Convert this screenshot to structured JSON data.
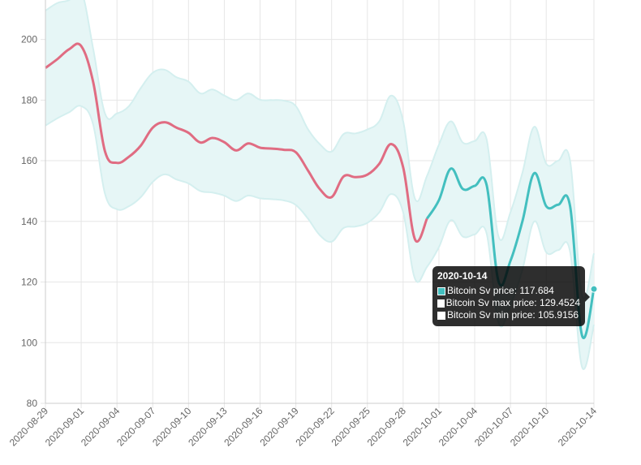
{
  "chart_data": {
    "type": "line",
    "x": [
      "2020-08-29",
      "2020-08-30",
      "2020-08-31",
      "2020-09-01",
      "2020-09-02",
      "2020-09-03",
      "2020-09-04",
      "2020-09-05",
      "2020-09-06",
      "2020-09-07",
      "2020-09-08",
      "2020-09-09",
      "2020-09-10",
      "2020-09-11",
      "2020-09-12",
      "2020-09-13",
      "2020-09-14",
      "2020-09-15",
      "2020-09-16",
      "2020-09-17",
      "2020-09-18",
      "2020-09-19",
      "2020-09-20",
      "2020-09-21",
      "2020-09-22",
      "2020-09-23",
      "2020-09-24",
      "2020-09-25",
      "2020-09-26",
      "2020-09-27",
      "2020-09-28",
      "2020-09-29",
      "2020-09-30",
      "2020-10-01",
      "2020-10-02",
      "2020-10-03",
      "2020-10-04",
      "2020-10-05",
      "2020-10-06",
      "2020-10-07",
      "2020-10-08",
      "2020-10-09",
      "2020-10-10",
      "2020-10-11",
      "2020-10-12",
      "2020-10-13",
      "2020-10-14"
    ],
    "x_tick_labels": [
      "2020-08-29",
      "2020-09-01",
      "2020-09-04",
      "2020-09-07",
      "2020-09-10",
      "2020-09-13",
      "2020-09-16",
      "2020-09-19",
      "2020-09-22",
      "2020-09-25",
      "2020-09-28",
      "2020-10-01",
      "2020-10-04",
      "2020-10-07",
      "2020-10-10",
      "2020-10-14"
    ],
    "y_ticks": [
      80,
      100,
      120,
      140,
      160,
      180,
      200
    ],
    "ylim": [
      80,
      213
    ],
    "series": [
      {
        "name": "Bitcoin Sv price",
        "color": "#e06c82",
        "forecast_color": "#43bfbf",
        "forecast_start": "2020-09-30",
        "values": [
          190.6,
          193.5,
          196.8,
          197.8,
          186,
          163,
          159.3,
          161.3,
          165,
          170.9,
          172.7,
          170.9,
          169.2,
          166,
          167.5,
          166.1,
          163.4,
          165.7,
          164.3,
          164,
          163.6,
          162.8,
          156.9,
          150.7,
          148,
          154.8,
          154.6,
          155.4,
          159,
          165.5,
          157.8,
          134,
          140.9,
          147,
          157.4,
          150.7,
          151.7,
          152,
          120.2,
          127,
          140,
          155.9,
          145,
          145.5,
          145,
          102.4,
          117.684
        ]
      },
      {
        "name": "Bitcoin Sv max price",
        "color": "#c6ebeb",
        "values": [
          209.5,
          212,
          213,
          216,
          197,
          175.5,
          175.6,
          178,
          184,
          189,
          190,
          187.5,
          186.1,
          182.2,
          183.5,
          181.5,
          180,
          182.2,
          180.1,
          180,
          179.8,
          178,
          170.5,
          165.5,
          163,
          168.8,
          169,
          170.3,
          173,
          181.5,
          173,
          147.4,
          155,
          165.3,
          173,
          166,
          166.5,
          167,
          135,
          143,
          156,
          171.2,
          159,
          160,
          160,
          115.6,
          129.4524
        ]
      },
      {
        "name": "Bitcoin Sv min price",
        "color": "#c6ebeb",
        "values": [
          171.6,
          174,
          176,
          178,
          172,
          149,
          144,
          145,
          148,
          153,
          155.5,
          153.8,
          152.5,
          150,
          149.5,
          148.5,
          146.7,
          148.5,
          147.6,
          147.3,
          146.9,
          145.4,
          141,
          135.5,
          133.3,
          137.8,
          138.3,
          139.5,
          143,
          149,
          143,
          121,
          125,
          131.5,
          140.4,
          135,
          135.7,
          136,
          106.6,
          112.5,
          124,
          140,
          129.8,
          130.5,
          130,
          92,
          105.9156
        ]
      }
    ],
    "tooltip": {
      "title": "2020-10-14",
      "rows": [
        {
          "label": "Bitcoin Sv price: 117.684",
          "swatch": "#43bfbf"
        },
        {
          "label": "Bitcoin Sv max price: 129.4524",
          "swatch": "#ffffff"
        },
        {
          "label": "Bitcoin Sv min price: 105.9156",
          "swatch": "#ffffff"
        }
      ]
    },
    "grid": true,
    "colors": {
      "grid": "#e6e6e6",
      "axis": "#cccccc",
      "band_fill": "#e6f6f6",
      "band_stroke": "#d4efef"
    }
  }
}
